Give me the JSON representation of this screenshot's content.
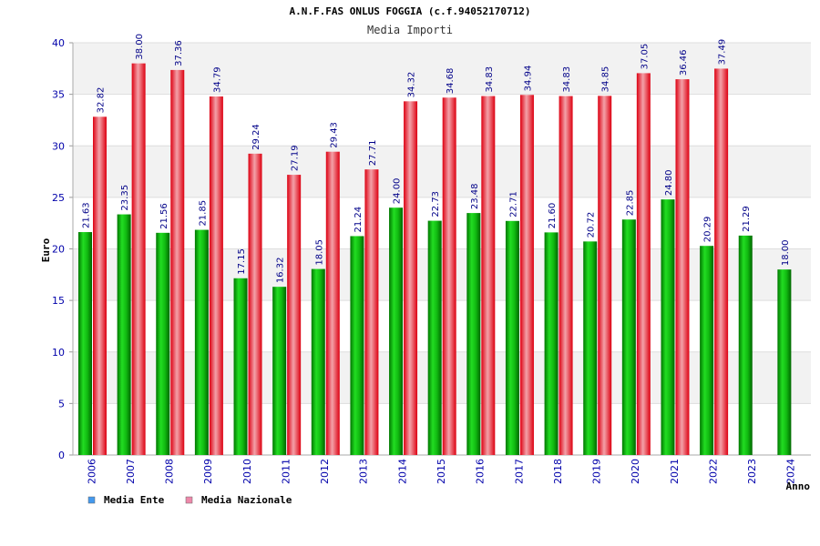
{
  "chart_data": {
    "type": "bar",
    "title": "A.N.F.FAS ONLUS FOGGIA (c.f.94052170712)",
    "subtitle": "Media Importi",
    "xlabel": "Anno",
    "ylabel": "Euro",
    "ylim": [
      0,
      40
    ],
    "yticks": [
      "0",
      "5",
      "10",
      "15",
      "20",
      "25",
      "30",
      "35",
      "40"
    ],
    "categories": [
      "2006",
      "2007",
      "2008",
      "2009",
      "2010",
      "2011",
      "2012",
      "2013",
      "2014",
      "2015",
      "2016",
      "2017",
      "2018",
      "2019",
      "2020",
      "2021",
      "2022",
      "2023",
      "2024"
    ],
    "series": [
      {
        "name": "Media Ente",
        "color": "#009900",
        "legend_color": "#4499ee",
        "values": [
          21.63,
          23.35,
          21.56,
          21.85,
          17.15,
          16.32,
          18.05,
          21.24,
          24.0,
          22.73,
          23.48,
          22.71,
          21.6,
          20.72,
          22.85,
          24.8,
          20.29,
          21.29,
          18.0
        ],
        "labels": [
          "21.63",
          "23.35",
          "21.56",
          "21.85",
          "17.15",
          "16.32",
          "18.05",
          "21.24",
          "24.00",
          "22.73",
          "23.48",
          "22.71",
          "21.60",
          "20.72",
          "22.85",
          "24.80",
          "20.29",
          "21.29",
          "18.00"
        ]
      },
      {
        "name": "Media Nazionale",
        "color": "#ee1122",
        "legend_color": "#ee88aa",
        "values": [
          32.82,
          38.0,
          37.36,
          34.79,
          29.24,
          27.19,
          29.43,
          27.71,
          34.32,
          34.68,
          34.83,
          34.94,
          34.83,
          34.85,
          37.05,
          36.46,
          37.49,
          null,
          null
        ],
        "labels": [
          "32.82",
          "38.00",
          "37.36",
          "34.79",
          "29.24",
          "27.19",
          "29.43",
          "27.71",
          "34.32",
          "34.68",
          "34.83",
          "34.94",
          "34.83",
          "34.85",
          "37.05",
          "36.46",
          "37.49",
          null,
          null
        ]
      }
    ],
    "grid": true,
    "legend_position": "bottom-left"
  }
}
